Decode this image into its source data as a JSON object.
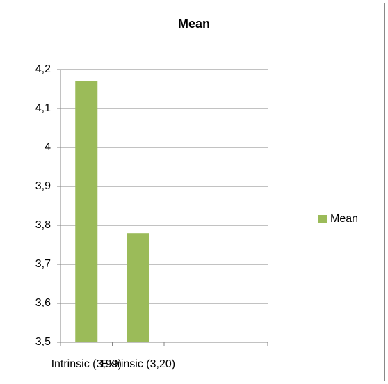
{
  "chart_data": {
    "type": "bar",
    "title": "Mean",
    "categories": [
      "Intrinsic (3,99)",
      "Extrinsic (3,20)",
      null,
      null
    ],
    "series": [
      {
        "name": "Mean",
        "color": "#9bbb59",
        "values": [
          4.17,
          3.78,
          null,
          null
        ]
      }
    ],
    "ylim": [
      3.5,
      4.2
    ],
    "yticks": [
      {
        "value": 3.5,
        "label": "3,5"
      },
      {
        "value": 3.6,
        "label": "3,6"
      },
      {
        "value": 3.7,
        "label": "3,7"
      },
      {
        "value": 3.8,
        "label": "3,8"
      },
      {
        "value": 3.9,
        "label": "3,9"
      },
      4,
      {
        "value": 4.1,
        "label": "4,1"
      },
      {
        "value": 4.2,
        "label": "4,2"
      }
    ],
    "grid": true,
    "legend": "right"
  }
}
